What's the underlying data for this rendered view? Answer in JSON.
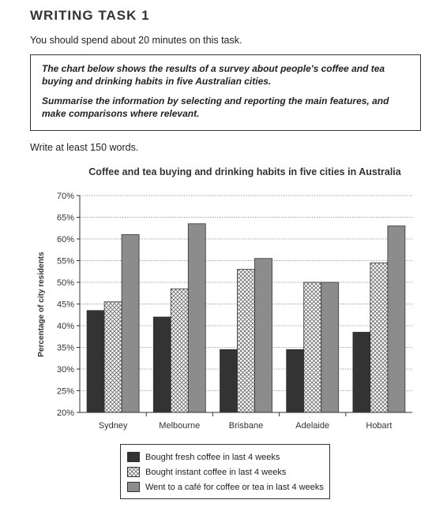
{
  "header": {
    "title": "WRITING TASK 1",
    "instruction": "You should spend about 20 minutes on this task."
  },
  "task": {
    "line1": "The chart below shows the results of a survey about people's coffee and tea buying and drinking habits in five Australian cities.",
    "line2": "Summarise the information by selecting and reporting the main features, and make comparisons where relevant."
  },
  "min_words": "Write at least 150 words.",
  "colors": {
    "fresh": "#333333",
    "instant_pattern": "#666666",
    "cafe": "#8c8c8c",
    "grid": "#888888"
  },
  "chart_data": {
    "type": "bar",
    "title": "Coffee and tea buying and drinking habits in five cities in Australia",
    "xlabel": "",
    "ylabel": "Percentage of city residents",
    "categories": [
      "Sydney",
      "Melbourne",
      "Brisbane",
      "Adelaide",
      "Hobart"
    ],
    "ylim": [
      20,
      70
    ],
    "yticks": [
      "20%",
      "25%",
      "30%",
      "35%",
      "40%",
      "45%",
      "50%",
      "55%",
      "60%",
      "65%",
      "70%"
    ],
    "grid": true,
    "legend_position": "bottom",
    "series": [
      {
        "name": "Bought fresh coffee in last 4 weeks",
        "values": [
          43.5,
          42,
          34.5,
          34.5,
          38.5
        ]
      },
      {
        "name": "Bought instant coffee in last 4 weeks",
        "values": [
          45.5,
          48.5,
          53,
          50,
          54.5
        ]
      },
      {
        "name": "Went to a café for coffee or tea in last 4 weeks",
        "values": [
          61,
          63.5,
          55.5,
          50,
          63
        ]
      }
    ]
  }
}
